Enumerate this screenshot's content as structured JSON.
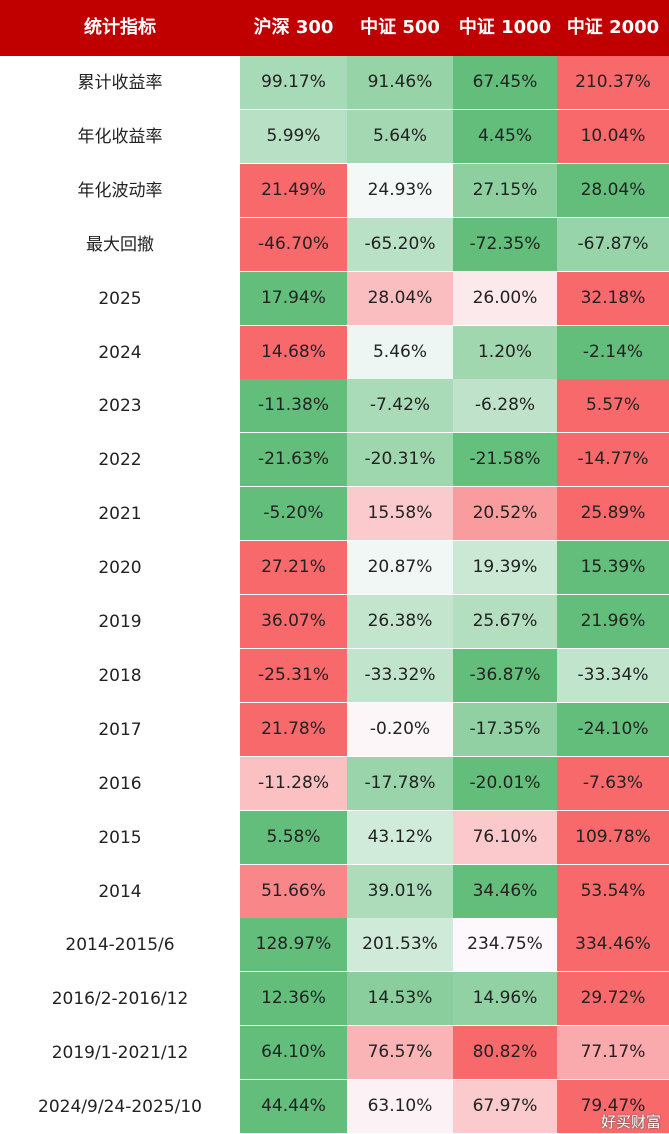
{
  "header": {
    "label": "统计指标",
    "columns": [
      "沪深 300",
      "中证 500",
      "中证 1000",
      "中证 2000"
    ]
  },
  "colors": {
    "header_bg": "#c00000",
    "header_text": "#ffffff",
    "scale_high": "#f8696b",
    "scale_mid": "#fcfcff",
    "scale_low": "#63be7b"
  },
  "chart_data": {
    "type": "heatmap",
    "columns": [
      "沪深 300",
      "中证 500",
      "中证 1000",
      "中证 2000"
    ],
    "color_scale": "per-row: highest value red, lowest value green",
    "rows": [
      {
        "label": "累计收益率",
        "values": [
          "99.17%",
          "91.46%",
          "67.45%",
          "210.37%"
        ],
        "numeric": [
          99.17,
          91.46,
          67.45,
          210.37
        ]
      },
      {
        "label": "年化收益率",
        "values": [
          "5.99%",
          "5.64%",
          "4.45%",
          "10.04%"
        ],
        "numeric": [
          5.99,
          5.64,
          4.45,
          10.04
        ]
      },
      {
        "label": "年化波动率",
        "values": [
          "21.49%",
          "24.93%",
          "27.15%",
          "28.04%"
        ],
        "numeric": [
          21.49,
          24.93,
          27.15,
          28.04
        ],
        "reversed": true
      },
      {
        "label": "最大回撤",
        "values": [
          "-46.70%",
          "-65.20%",
          "-72.35%",
          "-67.87%"
        ],
        "numeric": [
          -46.7,
          -65.2,
          -72.35,
          -67.87
        ]
      },
      {
        "label": "2025",
        "values": [
          "17.94%",
          "28.04%",
          "26.00%",
          "32.18%"
        ],
        "numeric": [
          17.94,
          28.04,
          26.0,
          32.18
        ]
      },
      {
        "label": "2024",
        "values": [
          "14.68%",
          "5.46%",
          "1.20%",
          "-2.14%"
        ],
        "numeric": [
          14.68,
          5.46,
          1.2,
          -2.14
        ]
      },
      {
        "label": "2023",
        "values": [
          "-11.38%",
          "-7.42%",
          "-6.28%",
          "5.57%"
        ],
        "numeric": [
          -11.38,
          -7.42,
          -6.28,
          5.57
        ]
      },
      {
        "label": "2022",
        "values": [
          "-21.63%",
          "-20.31%",
          "-21.58%",
          "-14.77%"
        ],
        "numeric": [
          -21.63,
          -20.31,
          -21.58,
          -14.77
        ]
      },
      {
        "label": "2021",
        "values": [
          "-5.20%",
          "15.58%",
          "20.52%",
          "25.89%"
        ],
        "numeric": [
          -5.2,
          15.58,
          20.52,
          25.89
        ]
      },
      {
        "label": "2020",
        "values": [
          "27.21%",
          "20.87%",
          "19.39%",
          "15.39%"
        ],
        "numeric": [
          27.21,
          20.87,
          19.39,
          15.39
        ]
      },
      {
        "label": "2019",
        "values": [
          "36.07%",
          "26.38%",
          "25.67%",
          "21.96%"
        ],
        "numeric": [
          36.07,
          26.38,
          25.67,
          21.96
        ]
      },
      {
        "label": "2018",
        "values": [
          "-25.31%",
          "-33.32%",
          "-36.87%",
          "-33.34%"
        ],
        "numeric": [
          -25.31,
          -33.32,
          -36.87,
          -33.34
        ]
      },
      {
        "label": "2017",
        "values": [
          "21.78%",
          "-0.20%",
          "-17.35%",
          "-24.10%"
        ],
        "numeric": [
          21.78,
          -0.2,
          -17.35,
          -24.1
        ]
      },
      {
        "label": "2016",
        "values": [
          "-11.28%",
          "-17.78%",
          "-20.01%",
          "-7.63%"
        ],
        "numeric": [
          -11.28,
          -17.78,
          -20.01,
          -7.63
        ]
      },
      {
        "label": "2015",
        "values": [
          "5.58%",
          "43.12%",
          "76.10%",
          "109.78%"
        ],
        "numeric": [
          5.58,
          43.12,
          76.1,
          109.78
        ]
      },
      {
        "label": "2014",
        "values": [
          "51.66%",
          "39.01%",
          "34.46%",
          "53.54%"
        ],
        "numeric": [
          51.66,
          39.01,
          34.46,
          53.54
        ]
      },
      {
        "label": "2014-2015/6",
        "values": [
          "128.97%",
          "201.53%",
          "234.75%",
          "334.46%"
        ],
        "numeric": [
          128.97,
          201.53,
          234.75,
          334.46
        ]
      },
      {
        "label": "2016/2-2016/12",
        "values": [
          "12.36%",
          "14.53%",
          "14.96%",
          "29.72%"
        ],
        "numeric": [
          12.36,
          14.53,
          14.96,
          29.72
        ]
      },
      {
        "label": "2019/1-2021/12",
        "values": [
          "64.10%",
          "76.57%",
          "80.82%",
          "77.17%"
        ],
        "numeric": [
          64.1,
          76.57,
          80.82,
          77.17
        ]
      },
      {
        "label": "2024/9/24-2025/10",
        "values": [
          "44.44%",
          "63.10%",
          "67.97%",
          "79.47%"
        ],
        "numeric": [
          44.44,
          63.1,
          67.97,
          79.47
        ]
      }
    ]
  },
  "watermark": "好买财富"
}
